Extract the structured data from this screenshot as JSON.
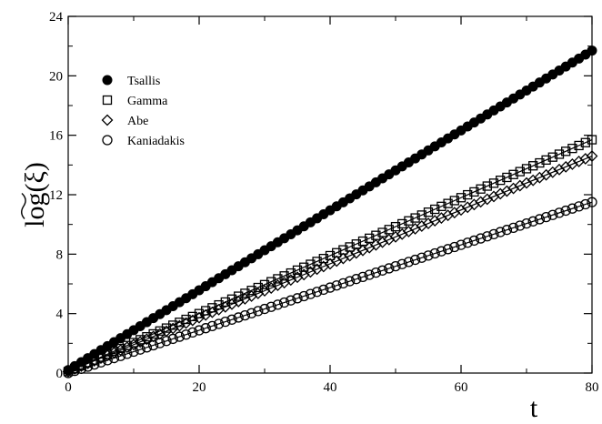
{
  "chart_data": {
    "type": "scatter",
    "title": "",
    "xlabel": "t",
    "ylabel": "log(ξ)",
    "ylabel_parts": {
      "prefix": "l",
      "tilde_part": "og",
      "suffix": "(ξ)"
    },
    "xlim": [
      0,
      80
    ],
    "ylim": [
      0,
      24
    ],
    "xticks": [
      0,
      20,
      40,
      60,
      80
    ],
    "yticks": [
      0,
      4,
      8,
      12,
      16,
      20,
      24
    ],
    "grid": false,
    "legend_position": "top-left",
    "series": [
      {
        "name": "Tsallis",
        "marker": "filled-circle",
        "x_start": 0,
        "x_end": 80,
        "x_step": 1,
        "y_start": 0.2,
        "y_end": 21.7,
        "fit_line": true
      },
      {
        "name": "Gamma",
        "marker": "open-square",
        "x_start": 0,
        "x_end": 80,
        "x_step": 1,
        "y_start": 0.1,
        "y_end": 15.7,
        "fit_line": true
      },
      {
        "name": "Abe",
        "marker": "open-diamond",
        "x_start": 0,
        "x_end": 80,
        "x_step": 1,
        "y_start": 0.1,
        "y_end": 14.6,
        "fit_line": true
      },
      {
        "name": "Kaniadakis",
        "marker": "open-circle",
        "x_start": 0,
        "x_end": 80,
        "x_step": 1,
        "y_start": 0.0,
        "y_end": 11.5,
        "fit_line": true
      }
    ]
  }
}
